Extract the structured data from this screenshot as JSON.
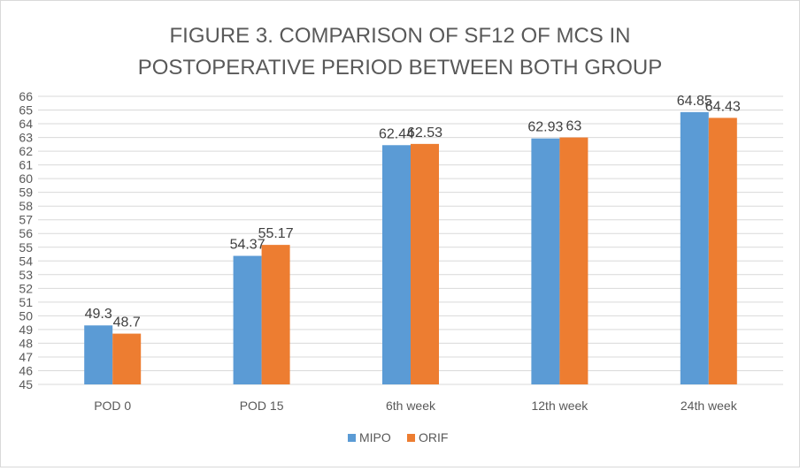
{
  "chart_data": {
    "type": "bar",
    "title": "FIGURE 3. COMPARISON OF SF12 OF MCS IN POSTOPERATIVE PERIOD BETWEEN BOTH GROUP",
    "title_lines": [
      "FIGURE 3. COMPARISON OF SF12 OF MCS IN",
      "POSTOPERATIVE PERIOD BETWEEN BOTH GROUP"
    ],
    "categories": [
      "POD 0",
      "POD 15",
      "6th week",
      "12th week",
      "24th week"
    ],
    "series": [
      {
        "name": "MIPO",
        "color": "#5b9bd5",
        "values": [
          49.3,
          54.37,
          62.44,
          62.93,
          64.85
        ]
      },
      {
        "name": "ORIF",
        "color": "#ed7d31",
        "values": [
          48.7,
          55.17,
          62.53,
          63,
          64.43
        ]
      }
    ],
    "xlabel": "",
    "ylabel": "",
    "ylim": [
      45,
      66
    ],
    "ytick_step": 1,
    "grid": true,
    "legend": "bottom"
  }
}
